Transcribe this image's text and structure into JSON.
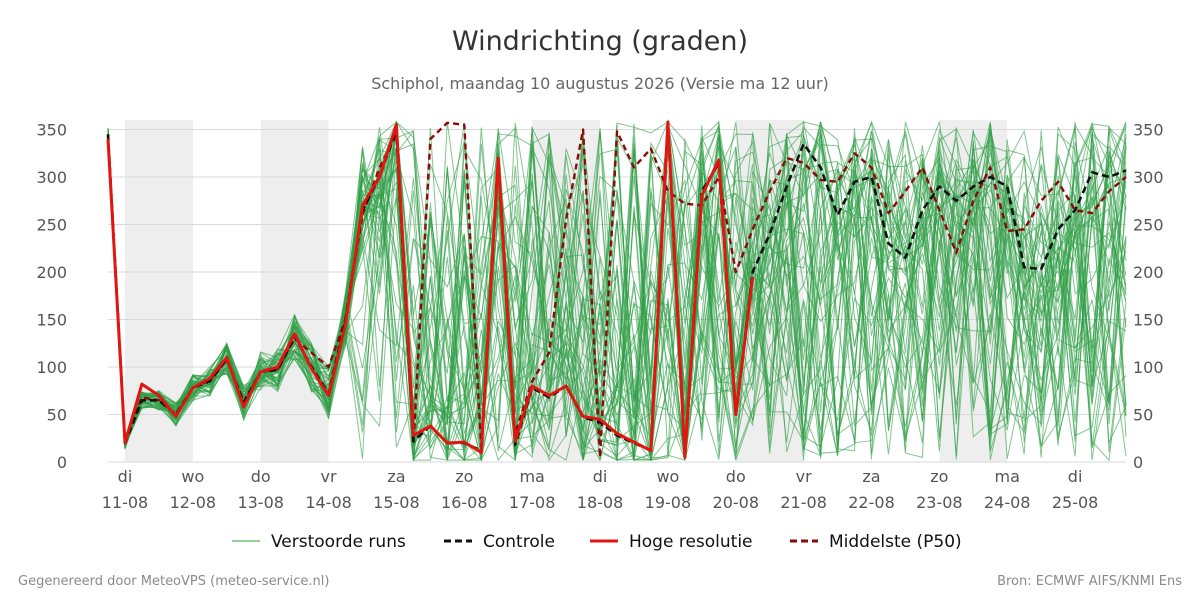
{
  "header": {
    "title": "Windrichting (graden)",
    "subtitle": "Schiphol, maandag 10 augustus 2026 (Versie ma 12 uur)"
  },
  "footer": {
    "left": "Gegenereerd door MeteoVPS (meteo-service.nl)",
    "right": "Bron: ECMWF AIFS/KNMI Ens"
  },
  "colors": {
    "ensemble": "#2e9e46",
    "control": "#111111",
    "highres": "#e3150f",
    "median": "#8b0a0a",
    "shade": "#eeeeee",
    "grid": "#d9d9d9"
  },
  "chart_data": {
    "type": "line",
    "ylim": [
      0,
      360
    ],
    "yticks": [
      0,
      50,
      100,
      150,
      200,
      250,
      300,
      350
    ],
    "xlim": [
      -0.25,
      14.75
    ],
    "x_unit": "dagen vanaf di 11-08 00 uur",
    "x_ticks": [
      {
        "day": "di",
        "date": "11-08"
      },
      {
        "day": "wo",
        "date": "12-08"
      },
      {
        "day": "do",
        "date": "13-08"
      },
      {
        "day": "vr",
        "date": "14-08"
      },
      {
        "day": "za",
        "date": "15-08"
      },
      {
        "day": "zo",
        "date": "16-08"
      },
      {
        "day": "ma",
        "date": "17-08"
      },
      {
        "day": "di",
        "date": "18-08"
      },
      {
        "day": "wo",
        "date": "19-08"
      },
      {
        "day": "do",
        "date": "20-08"
      },
      {
        "day": "vr",
        "date": "21-08"
      },
      {
        "day": "za",
        "date": "22-08"
      },
      {
        "day": "zo",
        "date": "23-08"
      },
      {
        "day": "ma",
        "date": "24-08"
      },
      {
        "day": "di",
        "date": "25-08"
      }
    ],
    "shaded_days": [
      0,
      2,
      6,
      9,
      12
    ],
    "legend": {
      "position": "bottom",
      "items": [
        {
          "label": "Verstoorde runs",
          "style": "ensemble"
        },
        {
          "label": "Controle",
          "style": "control"
        },
        {
          "label": "Hoge resolutie",
          "style": "highres"
        },
        {
          "label": "Middelste (P50)",
          "style": "median"
        }
      ]
    },
    "series": [
      {
        "name": "Controle",
        "style": "control",
        "x": [
          -0.25,
          0,
          0.25,
          0.5,
          0.75,
          1,
          1.25,
          1.5,
          1.75,
          2,
          2.25,
          2.5,
          2.75,
          3,
          3.25,
          3.5,
          3.75,
          4,
          4.25,
          4.5,
          4.75,
          5,
          5.25,
          5.5,
          5.75,
          6,
          6.25,
          6.5,
          6.75,
          7,
          7.25,
          7.5,
          7.75,
          8,
          8.25,
          8.5,
          8.75,
          9,
          9.25,
          9.5,
          9.75,
          10,
          10.25,
          10.5,
          10.75,
          11,
          11.25,
          11.5,
          11.75,
          12,
          12.25,
          12.5,
          12.75,
          13,
          13.25,
          13.5,
          13.75,
          14,
          14.25,
          14.5,
          14.75
        ],
        "y": [
          345,
          20,
          65,
          65,
          50,
          78,
          85,
          108,
          63,
          95,
          97,
          132,
          100,
          72,
          150,
          265,
          300,
          350,
          22,
          38,
          20,
          20,
          12,
          318,
          18,
          78,
          68,
          80,
          47,
          42,
          28,
          20,
          12,
          355,
          5,
          285,
          315,
          48,
          200,
          240,
          290,
          335,
          310,
          260,
          295,
          300,
          230,
          215,
          265,
          290,
          275,
          290,
          300,
          290,
          205,
          203,
          245,
          265,
          305,
          300,
          307
        ]
      },
      {
        "name": "Hoge resolutie",
        "style": "highres",
        "x": [
          -0.25,
          0,
          0.25,
          0.5,
          0.75,
          1,
          1.25,
          1.5,
          1.75,
          2,
          2.25,
          2.5,
          2.75,
          3,
          3.25,
          3.5,
          3.75,
          4,
          4.25,
          4.5,
          4.75,
          5,
          5.25,
          5.5,
          5.75,
          6,
          6.25,
          6.5,
          6.75,
          7,
          7.25,
          7.5,
          7.75,
          8,
          8.25,
          8.5,
          8.75,
          9,
          9.25
        ],
        "y": [
          340,
          20,
          82,
          70,
          48,
          78,
          88,
          110,
          58,
          95,
          100,
          135,
          98,
          70,
          145,
          270,
          300,
          355,
          28,
          38,
          20,
          21,
          10,
          320,
          22,
          80,
          70,
          80,
          48,
          45,
          30,
          21,
          12,
          358,
          5,
          280,
          318,
          50,
          195
        ]
      },
      {
        "name": "Middelste (P50)",
        "style": "median",
        "x": [
          -0.25,
          0,
          0.25,
          0.5,
          0.75,
          1,
          1.25,
          1.5,
          1.75,
          2,
          2.25,
          2.5,
          2.75,
          3,
          3.25,
          3.5,
          3.75,
          4,
          4.25,
          4.5,
          4.75,
          5,
          5.25,
          5.5,
          5.75,
          6,
          6.25,
          6.5,
          6.75,
          7,
          7.25,
          7.5,
          7.75,
          8,
          8.25,
          8.5,
          8.75,
          9,
          9.25,
          9.5,
          9.75,
          10,
          10.25,
          10.5,
          10.75,
          11,
          11.25,
          11.5,
          11.75,
          12,
          12.25,
          12.5,
          12.75,
          13,
          13.25,
          13.5,
          13.75,
          14,
          14.25,
          14.5,
          14.75
        ],
        "y": [
          345,
          20,
          68,
          65,
          50,
          78,
          86,
          108,
          62,
          95,
          98,
          130,
          115,
          100,
          150,
          260,
          310,
          345,
          20,
          340,
          357,
          355,
          12,
          320,
          30,
          85,
          115,
          255,
          350,
          5,
          348,
          310,
          330,
          285,
          272,
          270,
          300,
          200,
          245,
          285,
          320,
          315,
          297,
          295,
          325,
          310,
          262,
          285,
          310,
          265,
          220,
          275,
          310,
          243,
          245,
          275,
          295,
          265,
          262,
          285,
          300
        ]
      }
    ]
  }
}
